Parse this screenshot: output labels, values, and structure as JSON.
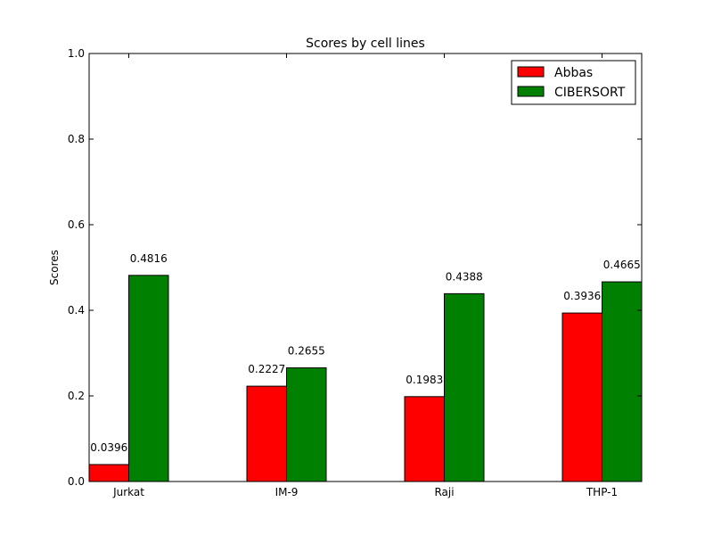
{
  "chart_data": {
    "type": "bar",
    "title": "Scores by cell lines",
    "xlabel": "",
    "ylabel": "Scores",
    "ylim": [
      0,
      1.0
    ],
    "yticks": [
      "0.0",
      "0.2",
      "0.4",
      "0.6",
      "0.8",
      "1.0"
    ],
    "categories": [
      "Jurkat",
      "IM-9",
      "Raji",
      "THP-1"
    ],
    "series": [
      {
        "name": "Abbas",
        "color": "#ff0000",
        "values": [
          0.0396,
          0.2227,
          0.1983,
          0.3936
        ],
        "labels": [
          "0.0396",
          "0.2227",
          "0.1983",
          "0.3936"
        ]
      },
      {
        "name": "CIBERSORT",
        "color": "#008000",
        "values": [
          0.4816,
          0.2655,
          0.4388,
          0.4665
        ],
        "labels": [
          "0.4816",
          "0.2655",
          "0.4388",
          "0.4665"
        ]
      }
    ],
    "grid": false,
    "legend": "top-right"
  }
}
